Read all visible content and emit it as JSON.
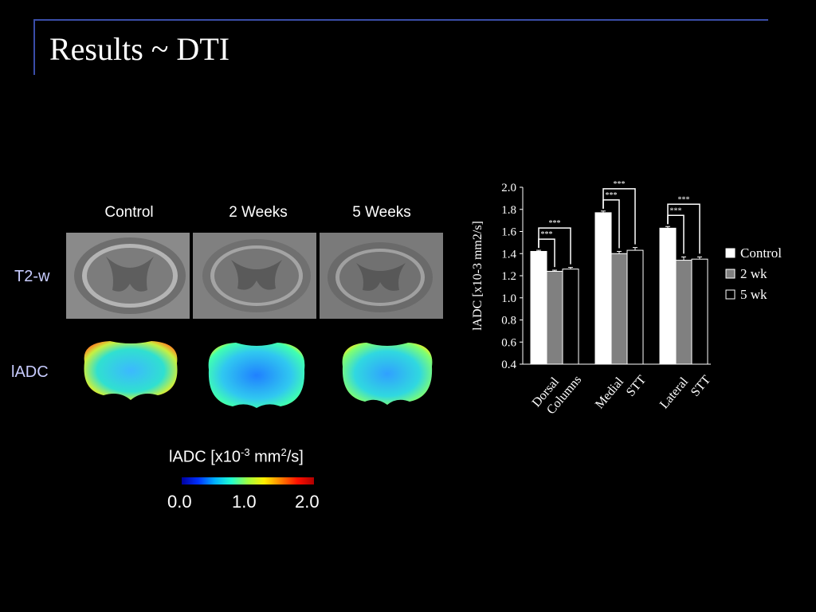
{
  "slide": {
    "title": "Results ~ DTI"
  },
  "figure": {
    "column_headers": [
      "Control",
      "2 Weeks",
      "5 Weeks"
    ],
    "row_labels": {
      "t2": "T2-w",
      "adc": "lADC"
    },
    "colorbar": {
      "label_prefix": "lADC [x10",
      "label_exp1": "-3",
      "label_mid": " mm",
      "label_exp2": "2",
      "label_suffix": "/s]",
      "ticks": [
        "0.0",
        "1.0",
        "2.0"
      ]
    }
  },
  "chart_data": {
    "type": "bar",
    "title": "",
    "ylabel": "lADC [x10-3 mm2/s]",
    "xlabel": "",
    "ylim": [
      0.4,
      2.0
    ],
    "yticks": [
      "0.4",
      "0.6",
      "0.8",
      "1.0",
      "1.2",
      "1.4",
      "1.6",
      "1.8",
      "2.0"
    ],
    "categories": [
      [
        "Dorsal",
        "Columns"
      ],
      [
        "Medial",
        "STT"
      ],
      [
        "Lateral",
        "STT"
      ]
    ],
    "series": [
      {
        "name": "Control",
        "values": [
          1.42,
          1.77,
          1.63
        ],
        "errors": [
          0.01,
          0.015,
          0.015
        ],
        "color": "#ffffff"
      },
      {
        "name": "2 wk",
        "values": [
          1.24,
          1.4,
          1.34
        ],
        "errors": [
          0.01,
          0.02,
          0.03
        ],
        "color": "#808080"
      },
      {
        "name": "5 wk",
        "values": [
          1.26,
          1.43,
          1.35
        ],
        "errors": [
          0.015,
          0.025,
          0.02
        ],
        "color": "#000000"
      }
    ],
    "significance_label": "***",
    "legend": {
      "position": "right"
    },
    "grid": false
  }
}
